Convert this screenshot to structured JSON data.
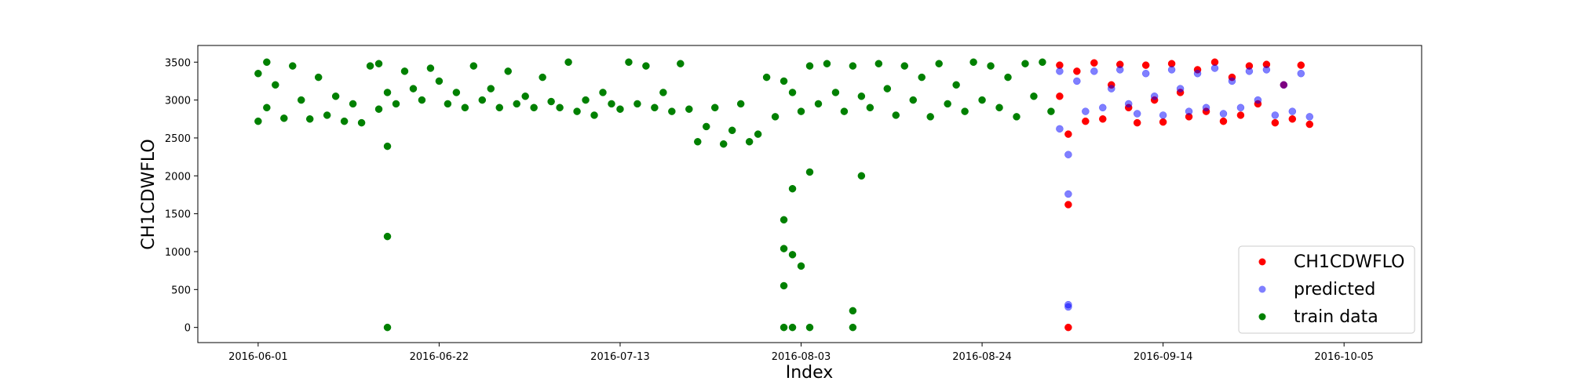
{
  "chart_data": {
    "type": "scatter",
    "title": "",
    "xlabel": "Index",
    "ylabel": "CH1CDWFLO",
    "x_ticks": [
      "2016-06-01",
      "2016-06-22",
      "2016-07-13",
      "2016-08-03",
      "2016-08-24",
      "2016-09-14",
      "2016-10-05"
    ],
    "y_ticks": [
      0,
      500,
      1000,
      1500,
      2000,
      2500,
      3000,
      3500
    ],
    "xlim": [
      "2016-05-25",
      "2016-10-14"
    ],
    "ylim": [
      -200,
      3720
    ],
    "legend_position": "lower right",
    "grid": false,
    "series": [
      {
        "name": "CH1CDWFLO",
        "color": "#ff0000",
        "alpha": 1.0,
        "points": [
          [
            "2016-09-02",
            3460
          ],
          [
            "2016-09-02",
            3050
          ],
          [
            "2016-09-03",
            2550
          ],
          [
            "2016-09-03",
            1620
          ],
          [
            "2016-09-03",
            0
          ],
          [
            "2016-09-04",
            3380
          ],
          [
            "2016-09-05",
            2720
          ],
          [
            "2016-09-06",
            3490
          ],
          [
            "2016-09-07",
            2750
          ],
          [
            "2016-09-08",
            3200
          ],
          [
            "2016-09-09",
            3470
          ],
          [
            "2016-09-10",
            2900
          ],
          [
            "2016-09-11",
            2700
          ],
          [
            "2016-09-12",
            3460
          ],
          [
            "2016-09-13",
            3000
          ],
          [
            "2016-09-14",
            2710
          ],
          [
            "2016-09-15",
            3480
          ],
          [
            "2016-09-16",
            3100
          ],
          [
            "2016-09-17",
            2780
          ],
          [
            "2016-09-18",
            3400
          ],
          [
            "2016-09-19",
            2850
          ],
          [
            "2016-09-20",
            3500
          ],
          [
            "2016-09-21",
            2720
          ],
          [
            "2016-09-22",
            3300
          ],
          [
            "2016-09-23",
            2800
          ],
          [
            "2016-09-24",
            3450
          ],
          [
            "2016-09-25",
            2950
          ],
          [
            "2016-09-26",
            3470
          ],
          [
            "2016-09-27",
            2700
          ],
          [
            "2016-09-28",
            3200
          ],
          [
            "2016-09-29",
            2750
          ],
          [
            "2016-09-30",
            3460
          ],
          [
            "2016-10-01",
            2680
          ]
        ]
      },
      {
        "name": "predicted",
        "color": "#0000ff",
        "alpha": 0.5,
        "points": [
          [
            "2016-09-02",
            3380
          ],
          [
            "2016-09-02",
            2620
          ],
          [
            "2016-09-03",
            2280
          ],
          [
            "2016-09-03",
            1760
          ],
          [
            "2016-09-03",
            300
          ],
          [
            "2016-09-03",
            270
          ],
          [
            "2016-09-04",
            3250
          ],
          [
            "2016-09-05",
            2850
          ],
          [
            "2016-09-06",
            3380
          ],
          [
            "2016-09-07",
            2900
          ],
          [
            "2016-09-08",
            3150
          ],
          [
            "2016-09-09",
            3400
          ],
          [
            "2016-09-10",
            2950
          ],
          [
            "2016-09-11",
            2820
          ],
          [
            "2016-09-12",
            3350
          ],
          [
            "2016-09-13",
            3050
          ],
          [
            "2016-09-14",
            2800
          ],
          [
            "2016-09-15",
            3400
          ],
          [
            "2016-09-16",
            3150
          ],
          [
            "2016-09-17",
            2850
          ],
          [
            "2016-09-18",
            3350
          ],
          [
            "2016-09-19",
            2900
          ],
          [
            "2016-09-20",
            3420
          ],
          [
            "2016-09-21",
            2820
          ],
          [
            "2016-09-22",
            3250
          ],
          [
            "2016-09-23",
            2900
          ],
          [
            "2016-09-24",
            3380
          ],
          [
            "2016-09-25",
            3000
          ],
          [
            "2016-09-26",
            3400
          ],
          [
            "2016-09-27",
            2800
          ],
          [
            "2016-09-28",
            3200
          ],
          [
            "2016-09-29",
            2850
          ],
          [
            "2016-09-30",
            3350
          ],
          [
            "2016-10-01",
            2780
          ]
        ]
      },
      {
        "name": "train data",
        "color": "#008000",
        "alpha": 1.0,
        "points": [
          [
            "2016-06-01",
            2720
          ],
          [
            "2016-06-01",
            3350
          ],
          [
            "2016-06-02",
            3500
          ],
          [
            "2016-06-02",
            2900
          ],
          [
            "2016-06-03",
            3200
          ],
          [
            "2016-06-04",
            2760
          ],
          [
            "2016-06-05",
            3450
          ],
          [
            "2016-06-06",
            3000
          ],
          [
            "2016-06-07",
            2750
          ],
          [
            "2016-06-08",
            3300
          ],
          [
            "2016-06-09",
            2800
          ],
          [
            "2016-06-10",
            3050
          ],
          [
            "2016-06-11",
            2720
          ],
          [
            "2016-06-12",
            2950
          ],
          [
            "2016-06-13",
            2700
          ],
          [
            "2016-06-14",
            3450
          ],
          [
            "2016-06-15",
            2880
          ],
          [
            "2016-06-15",
            3480
          ],
          [
            "2016-06-16",
            3100
          ],
          [
            "2016-06-16",
            2390
          ],
          [
            "2016-06-16",
            1200
          ],
          [
            "2016-06-16",
            0
          ],
          [
            "2016-06-17",
            2950
          ],
          [
            "2016-06-18",
            3380
          ],
          [
            "2016-06-19",
            3150
          ],
          [
            "2016-06-20",
            3000
          ],
          [
            "2016-06-21",
            3420
          ],
          [
            "2016-06-22",
            3250
          ],
          [
            "2016-06-23",
            2950
          ],
          [
            "2016-06-24",
            3100
          ],
          [
            "2016-06-25",
            2900
          ],
          [
            "2016-06-26",
            3450
          ],
          [
            "2016-06-27",
            3000
          ],
          [
            "2016-06-28",
            3150
          ],
          [
            "2016-06-29",
            2900
          ],
          [
            "2016-06-30",
            3380
          ],
          [
            "2016-07-01",
            2950
          ],
          [
            "2016-07-02",
            3050
          ],
          [
            "2016-07-03",
            2900
          ],
          [
            "2016-07-04",
            3300
          ],
          [
            "2016-07-05",
            2980
          ],
          [
            "2016-07-06",
            2900
          ],
          [
            "2016-07-07",
            3500
          ],
          [
            "2016-07-08",
            2850
          ],
          [
            "2016-07-09",
            3000
          ],
          [
            "2016-07-10",
            2800
          ],
          [
            "2016-07-11",
            3100
          ],
          [
            "2016-07-12",
            2950
          ],
          [
            "2016-07-13",
            2880
          ],
          [
            "2016-07-14",
            3500
          ],
          [
            "2016-07-15",
            2950
          ],
          [
            "2016-07-16",
            3450
          ],
          [
            "2016-07-17",
            2900
          ],
          [
            "2016-07-18",
            3100
          ],
          [
            "2016-07-19",
            2850
          ],
          [
            "2016-07-20",
            3480
          ],
          [
            "2016-07-21",
            2880
          ],
          [
            "2016-07-22",
            2450
          ],
          [
            "2016-07-23",
            2650
          ],
          [
            "2016-07-24",
            2900
          ],
          [
            "2016-07-25",
            2420
          ],
          [
            "2016-07-26",
            2600
          ],
          [
            "2016-07-27",
            2950
          ],
          [
            "2016-07-28",
            2450
          ],
          [
            "2016-07-29",
            2550
          ],
          [
            "2016-07-30",
            3300
          ],
          [
            "2016-07-31",
            2780
          ],
          [
            "2016-08-01",
            3250
          ],
          [
            "2016-08-01",
            1420
          ],
          [
            "2016-08-01",
            1040
          ],
          [
            "2016-08-01",
            550
          ],
          [
            "2016-08-01",
            0
          ],
          [
            "2016-08-02",
            3100
          ],
          [
            "2016-08-02",
            1830
          ],
          [
            "2016-08-02",
            960
          ],
          [
            "2016-08-02",
            0
          ],
          [
            "2016-08-03",
            2850
          ],
          [
            "2016-08-03",
            810
          ],
          [
            "2016-08-04",
            3450
          ],
          [
            "2016-08-04",
            2050
          ],
          [
            "2016-08-04",
            0
          ],
          [
            "2016-08-05",
            2950
          ],
          [
            "2016-08-06",
            3480
          ],
          [
            "2016-08-07",
            3100
          ],
          [
            "2016-08-08",
            2850
          ],
          [
            "2016-08-09",
            3450
          ],
          [
            "2016-08-09",
            220
          ],
          [
            "2016-08-09",
            0
          ],
          [
            "2016-08-10",
            3050
          ],
          [
            "2016-08-10",
            2000
          ],
          [
            "2016-08-11",
            2900
          ],
          [
            "2016-08-12",
            3480
          ],
          [
            "2016-08-13",
            3150
          ],
          [
            "2016-08-14",
            2800
          ],
          [
            "2016-08-15",
            3450
          ],
          [
            "2016-08-16",
            3000
          ],
          [
            "2016-08-17",
            3300
          ],
          [
            "2016-08-18",
            2780
          ],
          [
            "2016-08-19",
            3480
          ],
          [
            "2016-08-20",
            2950
          ],
          [
            "2016-08-21",
            3200
          ],
          [
            "2016-08-22",
            2850
          ],
          [
            "2016-08-23",
            3500
          ],
          [
            "2016-08-24",
            3000
          ],
          [
            "2016-08-25",
            3450
          ],
          [
            "2016-08-26",
            2900
          ],
          [
            "2016-08-27",
            3300
          ],
          [
            "2016-08-28",
            2780
          ],
          [
            "2016-08-29",
            3480
          ],
          [
            "2016-08-30",
            3050
          ],
          [
            "2016-08-31",
            3500
          ],
          [
            "2016-09-01",
            2850
          ]
        ]
      }
    ]
  }
}
